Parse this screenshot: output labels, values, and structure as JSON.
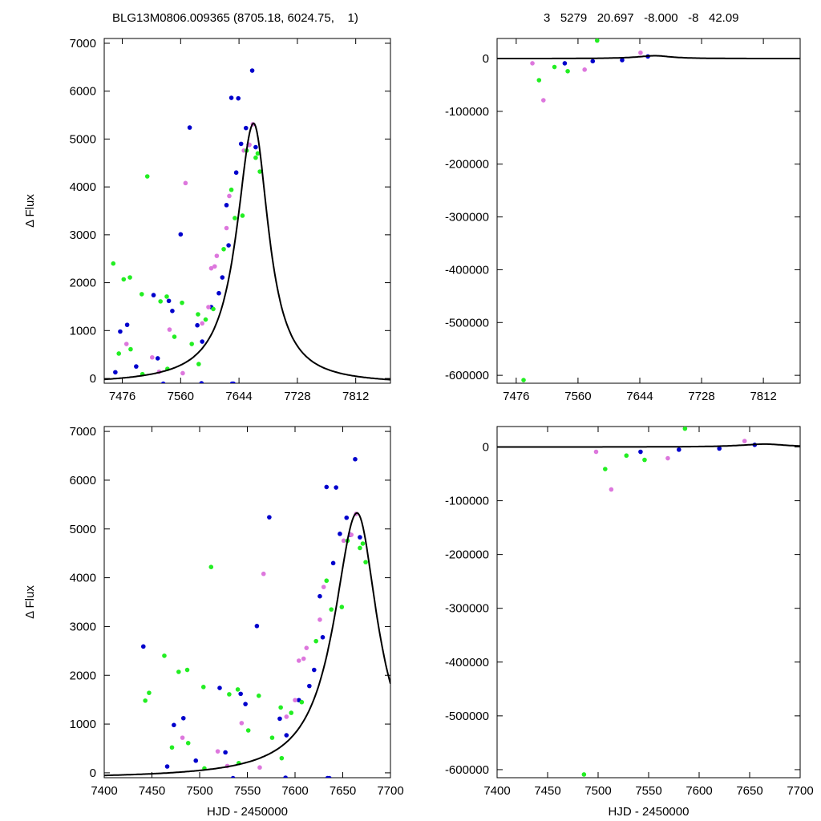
{
  "header": {
    "title_left": "BLG13M0806.009365 (8705.18, 6024.75,    1)",
    "title_right": "3   5279   20.697   -8.000   -8   42.09"
  },
  "colors": {
    "magenta": "#dd77dd",
    "green": "#22ee22",
    "blue": "#0000cc",
    "model": "#000000"
  },
  "chart_data": [
    {
      "type": "scatter",
      "panel": "top-left",
      "xlim": [
        7450,
        7862
      ],
      "ylim": [
        -100,
        7100
      ],
      "xticks": [
        7476,
        7560,
        7644,
        7728,
        7812
      ],
      "yticks": [
        0,
        1000,
        2000,
        3000,
        4000,
        5000,
        6000,
        7000
      ],
      "xlabel": "",
      "ylabel": "Δ Flux",
      "model": {
        "t0": 7665,
        "peak": 5450,
        "tau": 28
      },
      "series": [
        {
          "color": "blue",
          "values": [
            [
              7663,
              6430
            ],
            [
              7643,
              5850
            ],
            [
              7633,
              5860
            ],
            [
              7573,
              5240
            ],
            [
              7560,
              3010
            ],
            [
              7521,
              1740
            ],
            [
              7543,
              1620
            ],
            [
              7483,
              1120
            ],
            [
              7473,
              980
            ],
            [
              7647,
              4900
            ],
            [
              7654,
              5230
            ],
            [
              7668,
              4830
            ],
            [
              7658,
              4880
            ],
            [
              7640,
              4300
            ],
            [
              7626,
              3620
            ],
            [
              7629,
              2780
            ],
            [
              7620,
              2110
            ],
            [
              7615,
              1780
            ],
            [
              7604,
              1490
            ],
            [
              7584,
              1110
            ],
            [
              7548,
              1410
            ],
            [
              7591,
              770
            ],
            [
              7466,
              130
            ],
            [
              7496,
              250
            ],
            [
              7527,
              420
            ],
            [
              7535,
              -110
            ],
            [
              7590,
              -100
            ],
            [
              7634,
              -110
            ],
            [
              7636,
              -110
            ]
          ]
        },
        {
          "color": "magenta",
          "values": [
            [
              7664,
              5310
            ],
            [
              7659,
              4880
            ],
            [
              7651,
              4760
            ],
            [
              7630,
              3810
            ],
            [
              7612,
              2560
            ],
            [
              7604,
              2300
            ],
            [
              7567,
              4080
            ],
            [
              7544,
              1020
            ],
            [
              7519,
              440
            ],
            [
              7482,
              720
            ],
            [
              7529,
              140
            ],
            [
              7563,
              110
            ],
            [
              7626,
              3140
            ],
            [
              7609,
              2340
            ],
            [
              7600,
              1490
            ],
            [
              7591,
              1150
            ]
          ]
        },
        {
          "color": "green",
          "values": [
            [
              7512,
              4220
            ],
            [
              7463,
              2400
            ],
            [
              7478,
              2070
            ],
            [
              7487,
              2110
            ],
            [
              7504,
              1760
            ],
            [
              7540,
              1710
            ],
            [
              7531,
              1610
            ],
            [
              7562,
              1580
            ],
            [
              7585,
              1340
            ],
            [
              7596,
              1230
            ],
            [
              7607,
              1450
            ],
            [
              7622,
              2700
            ],
            [
              7633,
              3940
            ],
            [
              7638,
              3350
            ],
            [
              7649,
              3400
            ],
            [
              7655,
              4760
            ],
            [
              7671,
              4700
            ],
            [
              7668,
              4610
            ],
            [
              7674,
              4320
            ],
            [
              7551,
              870
            ],
            [
              7576,
              720
            ],
            [
              7488,
              610
            ],
            [
              7471,
              520
            ],
            [
              7505,
              90
            ],
            [
              7541,
              200
            ],
            [
              7586,
              300
            ]
          ]
        }
      ]
    },
    {
      "type": "scatter",
      "panel": "top-right",
      "xlim": [
        7450,
        7862
      ],
      "ylim": [
        -615000,
        38000
      ],
      "xticks": [
        7476,
        7560,
        7644,
        7728,
        7812
      ],
      "yticks": [
        0,
        -100000,
        -200000,
        -300000,
        -400000,
        -500000,
        -600000
      ],
      "model": {
        "t0": 7665,
        "peak": 5450,
        "tau": 28
      },
      "series": [
        {
          "color": "green",
          "values": [
            [
              7486,
              -609000
            ],
            [
              7586,
              34000
            ],
            [
              7507,
              -41000
            ],
            [
              7546,
              -24000
            ],
            [
              7528,
              -16000
            ]
          ]
        },
        {
          "color": "magenta",
          "values": [
            [
              7513,
              -79000
            ],
            [
              7569,
              -21000
            ],
            [
              7645,
              11000
            ],
            [
              7498,
              -9000
            ]
          ]
        },
        {
          "color": "blue",
          "values": [
            [
              7542,
              -9000
            ],
            [
              7580,
              -5000
            ],
            [
              7620,
              -3000
            ],
            [
              7655,
              4000
            ]
          ]
        }
      ]
    },
    {
      "type": "scatter",
      "panel": "bottom-left",
      "xlim": [
        7400,
        7700
      ],
      "ylim": [
        -100,
        7100
      ],
      "xticks": [
        7400,
        7450,
        7500,
        7550,
        7600,
        7650,
        7700
      ],
      "yticks": [
        0,
        1000,
        2000,
        3000,
        4000,
        5000,
        6000,
        7000
      ],
      "xlabel": "HJD - 2450000",
      "ylabel": "Δ Flux",
      "model": {
        "t0": 7665,
        "peak": 5450,
        "tau": 28
      },
      "series": [
        {
          "color": "blue",
          "values": [
            [
              7663,
              6430
            ],
            [
              7643,
              5850
            ],
            [
              7633,
              5860
            ],
            [
              7573,
              5240
            ],
            [
              7560,
              3010
            ],
            [
              7521,
              1740
            ],
            [
              7543,
              1620
            ],
            [
              7483,
              1120
            ],
            [
              7473,
              980
            ],
            [
              7647,
              4900
            ],
            [
              7654,
              5230
            ],
            [
              7668,
              4830
            ],
            [
              7658,
              4880
            ],
            [
              7640,
              4300
            ],
            [
              7626,
              3620
            ],
            [
              7629,
              2780
            ],
            [
              7620,
              2110
            ],
            [
              7615,
              1780
            ],
            [
              7604,
              1490
            ],
            [
              7584,
              1110
            ],
            [
              7548,
              1410
            ],
            [
              7591,
              770
            ],
            [
              7441,
              2590
            ],
            [
              7466,
              130
            ],
            [
              7496,
              250
            ],
            [
              7527,
              420
            ],
            [
              7535,
              -110
            ],
            [
              7590,
              -100
            ],
            [
              7634,
              -110
            ],
            [
              7636,
              -110
            ]
          ]
        },
        {
          "color": "magenta",
          "values": [
            [
              7664,
              5310
            ],
            [
              7659,
              4880
            ],
            [
              7651,
              4760
            ],
            [
              7630,
              3810
            ],
            [
              7612,
              2560
            ],
            [
              7604,
              2300
            ],
            [
              7567,
              4080
            ],
            [
              7544,
              1020
            ],
            [
              7519,
              440
            ],
            [
              7482,
              720
            ],
            [
              7529,
              140
            ],
            [
              7563,
              110
            ],
            [
              7626,
              3140
            ],
            [
              7609,
              2340
            ],
            [
              7600,
              1490
            ],
            [
              7591,
              1150
            ]
          ]
        },
        {
          "color": "green",
          "values": [
            [
              7512,
              4220
            ],
            [
              7463,
              2400
            ],
            [
              7478,
              2070
            ],
            [
              7487,
              2110
            ],
            [
              7504,
              1760
            ],
            [
              7540,
              1710
            ],
            [
              7531,
              1610
            ],
            [
              7562,
              1580
            ],
            [
              7585,
              1340
            ],
            [
              7596,
              1230
            ],
            [
              7607,
              1450
            ],
            [
              7622,
              2700
            ],
            [
              7633,
              3940
            ],
            [
              7638,
              3350
            ],
            [
              7649,
              3400
            ],
            [
              7655,
              4760
            ],
            [
              7671,
              4700
            ],
            [
              7668,
              4610
            ],
            [
              7674,
              4320
            ],
            [
              7551,
              870
            ],
            [
              7576,
              720
            ],
            [
              7488,
              610
            ],
            [
              7471,
              520
            ],
            [
              7505,
              90
            ],
            [
              7541,
              200
            ],
            [
              7586,
              300
            ],
            [
              7447,
              1640
            ],
            [
              7443,
              1480
            ]
          ]
        }
      ]
    },
    {
      "type": "scatter",
      "panel": "bottom-right",
      "xlim": [
        7400,
        7700
      ],
      "ylim": [
        -615000,
        38000
      ],
      "xticks": [
        7400,
        7450,
        7500,
        7550,
        7600,
        7650,
        7700
      ],
      "yticks": [
        0,
        -100000,
        -200000,
        -300000,
        -400000,
        -500000,
        -600000
      ],
      "xlabel": "HJD - 2450000",
      "model": {
        "t0": 7665,
        "peak": 5450,
        "tau": 28
      },
      "series": [
        {
          "color": "green",
          "values": [
            [
              7486,
              -609000
            ],
            [
              7586,
              34000
            ],
            [
              7507,
              -41000
            ],
            [
              7546,
              -24000
            ],
            [
              7528,
              -16000
            ]
          ]
        },
        {
          "color": "magenta",
          "values": [
            [
              7513,
              -79000
            ],
            [
              7569,
              -21000
            ],
            [
              7645,
              11000
            ],
            [
              7498,
              -9000
            ]
          ]
        },
        {
          "color": "blue",
          "values": [
            [
              7542,
              -9000
            ],
            [
              7580,
              -5000
            ],
            [
              7620,
              -3000
            ],
            [
              7655,
              4000
            ]
          ]
        }
      ]
    }
  ]
}
